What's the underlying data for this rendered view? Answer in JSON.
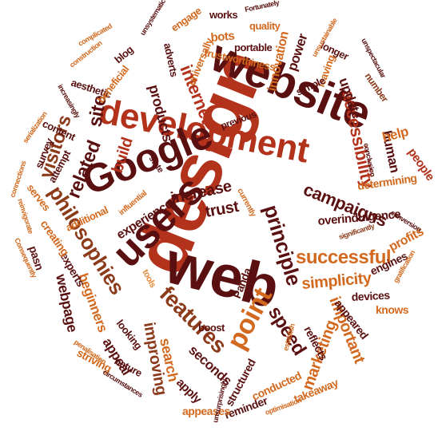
{
  "palette": {
    "dark": "#5a1010",
    "red": "#b3321c",
    "orange": "#d2691e",
    "brown": "#8b3a1a",
    "light": "#e3893a",
    "maroon": "#701818"
  },
  "words": [
    {
      "text": "design",
      "color": "red"
    },
    {
      "text": "website",
      "color": "dark"
    },
    {
      "text": "web",
      "color": "dark"
    },
    {
      "text": "development",
      "color": "red"
    },
    {
      "text": "Google",
      "color": "dark"
    },
    {
      "text": "users",
      "color": "dark"
    },
    {
      "text": "philosophies",
      "color": "brown"
    },
    {
      "text": "principle",
      "color": "dark"
    },
    {
      "text": "successful",
      "color": "orange"
    },
    {
      "text": "point",
      "color": "orange"
    },
    {
      "text": "features",
      "color": "brown"
    },
    {
      "text": "accessibility",
      "color": "red"
    },
    {
      "text": "internet",
      "color": "red"
    },
    {
      "text": "related",
      "color": "dark"
    },
    {
      "text": "visitors",
      "color": "brown"
    },
    {
      "text": "site",
      "color": "dark"
    },
    {
      "text": "build",
      "color": "red"
    },
    {
      "text": "campaigns",
      "color": "dark"
    },
    {
      "text": "simplicity",
      "color": "orange"
    },
    {
      "text": "important",
      "color": "orange"
    },
    {
      "text": "marketing",
      "color": "orange"
    },
    {
      "text": "speed",
      "color": "dark"
    },
    {
      "text": "improving",
      "color": "brown"
    },
    {
      "text": "increase",
      "color": "dark"
    },
    {
      "text": "experience",
      "color": "dark"
    },
    {
      "text": "trust",
      "color": "dark"
    },
    {
      "text": "products",
      "color": "dark"
    },
    {
      "text": "webpage",
      "color": "dark"
    },
    {
      "text": "search",
      "color": "orange"
    },
    {
      "text": "seconds",
      "color": "dark"
    },
    {
      "text": "appeal",
      "color": "dark"
    },
    {
      "text": "beginners",
      "color": "orange"
    },
    {
      "text": "innovation",
      "color": "orange"
    },
    {
      "text": "power",
      "color": "dark"
    },
    {
      "text": "update",
      "color": "dark"
    },
    {
      "text": "human",
      "color": "dark"
    },
    {
      "text": "help",
      "color": "orange"
    },
    {
      "text": "people",
      "color": "red"
    },
    {
      "text": "determining",
      "color": "orange"
    },
    {
      "text": "overindulgence",
      "color": "dark"
    },
    {
      "text": "profits",
      "color": "orange"
    },
    {
      "text": "engines",
      "color": "dark"
    },
    {
      "text": "devices",
      "color": "dark"
    },
    {
      "text": "knows",
      "color": "orange"
    },
    {
      "text": "appeared",
      "color": "dark"
    },
    {
      "text": "reflects",
      "color": "dark"
    },
    {
      "text": "takeaway",
      "color": "orange"
    },
    {
      "text": "conducted",
      "color": "orange"
    },
    {
      "text": "reminder",
      "color": "dark"
    },
    {
      "text": "appeases",
      "color": "orange"
    },
    {
      "text": "apply",
      "color": "dark"
    },
    {
      "text": "structured",
      "color": "dark"
    },
    {
      "text": "boost",
      "color": "dark"
    },
    {
      "text": "Panda",
      "color": "dark"
    },
    {
      "text": "tools",
      "color": "light"
    },
    {
      "text": "looking",
      "color": "dark"
    },
    {
      "text": "nature",
      "color": "dark"
    },
    {
      "text": "striving",
      "color": "orange"
    },
    {
      "text": "experts",
      "color": "dark"
    },
    {
      "text": "creating",
      "color": "orange"
    },
    {
      "text": "pasn",
      "color": "dark"
    },
    {
      "text": "serves",
      "color": "orange"
    },
    {
      "text": "additional",
      "color": "orange"
    },
    {
      "text": "attempt",
      "color": "dark"
    },
    {
      "text": "survey",
      "color": "dark"
    },
    {
      "text": "content",
      "color": "dark"
    },
    {
      "text": "aesthetic",
      "color": "dark"
    },
    {
      "text": "beneficial",
      "color": "orange"
    },
    {
      "text": "blog",
      "color": "dark"
    },
    {
      "text": "adverts",
      "color": "dark"
    },
    {
      "text": "engage",
      "color": "orange"
    },
    {
      "text": "works",
      "color": "dark"
    },
    {
      "text": "quality",
      "color": "orange"
    },
    {
      "text": "bots",
      "color": "orange"
    },
    {
      "text": "portable",
      "color": "dark"
    },
    {
      "text": "universally",
      "color": "orange"
    },
    {
      "text": "trustworthiness",
      "color": "orange"
    },
    {
      "text": "longer",
      "color": "dark"
    },
    {
      "text": "leaving",
      "color": "orange"
    },
    {
      "text": "simple",
      "color": "dark"
    },
    {
      "text": "number",
      "color": "brown"
    },
    {
      "text": "previous",
      "color": "dark"
    },
    {
      "text": "state",
      "color": "dark"
    },
    {
      "text": "currently",
      "color": "orange"
    },
    {
      "text": "influential",
      "color": "orange"
    },
    {
      "text": "significantly",
      "color": "brown"
    },
    {
      "text": "conversion",
      "color": "dark"
    },
    {
      "text": "gratification",
      "color": "orange"
    },
    {
      "text": "conclusion",
      "color": "dark"
    },
    {
      "text": "Fortunately",
      "color": "dark"
    },
    {
      "text": "unsystematic",
      "color": "dark"
    },
    {
      "text": "complicated",
      "color": "orange"
    },
    {
      "text": "construction",
      "color": "orange"
    },
    {
      "text": "increasingly",
      "color": "dark"
    },
    {
      "text": "serialization",
      "color": "orange"
    },
    {
      "text": "connections",
      "color": "orange"
    },
    {
      "text": "reinvigorate",
      "color": "orange"
    },
    {
      "text": "Consequently",
      "color": "orange"
    },
    {
      "text": "penalisation",
      "color": "orange"
    },
    {
      "text": "circumstances",
      "color": "dark"
    },
    {
      "text": "unsurprisingly",
      "color": "dark"
    },
    {
      "text": "optimisation",
      "color": "orange"
    },
    {
      "text": "establish",
      "color": "orange"
    },
    {
      "text": "unspectacular",
      "color": "dark"
    },
    {
      "text": "unsustainable",
      "color": "orange"
    }
  ]
}
